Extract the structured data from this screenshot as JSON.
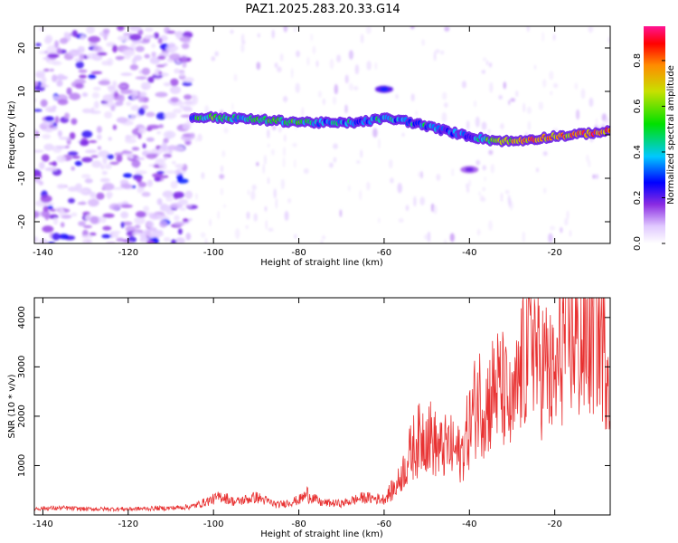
{
  "title": "PAZ1.2025.283.20.33.G14",
  "chart_data": [
    {
      "type": "heatmap",
      "panel": "spectrogram",
      "xlabel": "Height of straight line (km)",
      "ylabel": "Frequency (Hz)",
      "xlim": [
        -142,
        -7
      ],
      "ylim": [
        -25,
        25
      ],
      "x_ticks": [
        -140,
        -120,
        -100,
        -80,
        -60,
        -40,
        -20
      ],
      "y_ticks": [
        -20,
        -10,
        0,
        10,
        20
      ],
      "colorbar": {
        "label": "Normalized spectral amplitude",
        "range": [
          0,
          0.95
        ],
        "ticks": [
          0.0,
          0.2,
          0.4,
          0.6,
          0.8
        ]
      },
      "ridge": {
        "description": "Main frequency ridge (Hz) vs height",
        "x": [
          -105,
          -100,
          -95,
          -90,
          -85,
          -80,
          -75,
          -70,
          -65,
          -60,
          -55,
          -50,
          -45,
          -40,
          -35,
          -30,
          -25,
          -20,
          -15,
          -10,
          -7
        ],
        "y": [
          4.0,
          4.0,
          3.8,
          3.5,
          3.2,
          3.0,
          2.8,
          2.7,
          3.0,
          3.8,
          3.2,
          2.0,
          0.8,
          -0.3,
          -1.2,
          -1.5,
          -1.0,
          -0.3,
          0.0,
          0.6,
          0.8
        ],
        "amplitude": [
          0.45,
          0.6,
          0.5,
          0.5,
          0.55,
          0.55,
          0.45,
          0.4,
          0.4,
          0.45,
          0.4,
          0.45,
          0.35,
          0.3,
          0.6,
          0.75,
          0.85,
          0.8,
          0.85,
          0.9,
          0.9
        ]
      },
      "secondary_features": [
        {
          "x": -60,
          "y": 10.5,
          "amplitude": 0.3
        },
        {
          "x": -40,
          "y": -8,
          "amplitude": 0.2
        }
      ]
    },
    {
      "type": "line",
      "panel": "snr",
      "xlabel": "Height of straight line (km)",
      "ylabel": "SNR (10 * v/v)",
      "xlim": [
        -142,
        -7
      ],
      "ylim": [
        0,
        4400
      ],
      "x_ticks": [
        -140,
        -120,
        -100,
        -80,
        -60,
        -40,
        -20
      ],
      "y_ticks": [
        1000,
        2000,
        3000,
        4000
      ],
      "series": [
        {
          "name": "SNR",
          "color": "#e83232",
          "x": [
            -142,
            -135,
            -130,
            -120,
            -110,
            -105,
            -100,
            -98,
            -95,
            -90,
            -85,
            -80,
            -78,
            -75,
            -70,
            -65,
            -60,
            -57,
            -55,
            -53,
            -50,
            -47,
            -45,
            -42,
            -40,
            -38,
            -36,
            -34,
            -32,
            -30,
            -28,
            -26,
            -25,
            -24,
            -22,
            -20,
            -18,
            -16,
            -14,
            -12,
            -10,
            -8,
            -7
          ],
          "y": [
            130,
            140,
            120,
            120,
            140,
            170,
            320,
            380,
            260,
            360,
            200,
            300,
            420,
            250,
            230,
            350,
            320,
            600,
            1000,
            1400,
            1700,
            1300,
            1400,
            1200,
            1800,
            2400,
            2200,
            2600,
            2500,
            2000,
            2900,
            3500,
            3800,
            3000,
            3000,
            2600,
            3600,
            3700,
            3400,
            3600,
            4000,
            3300,
            3400
          ]
        }
      ]
    }
  ]
}
